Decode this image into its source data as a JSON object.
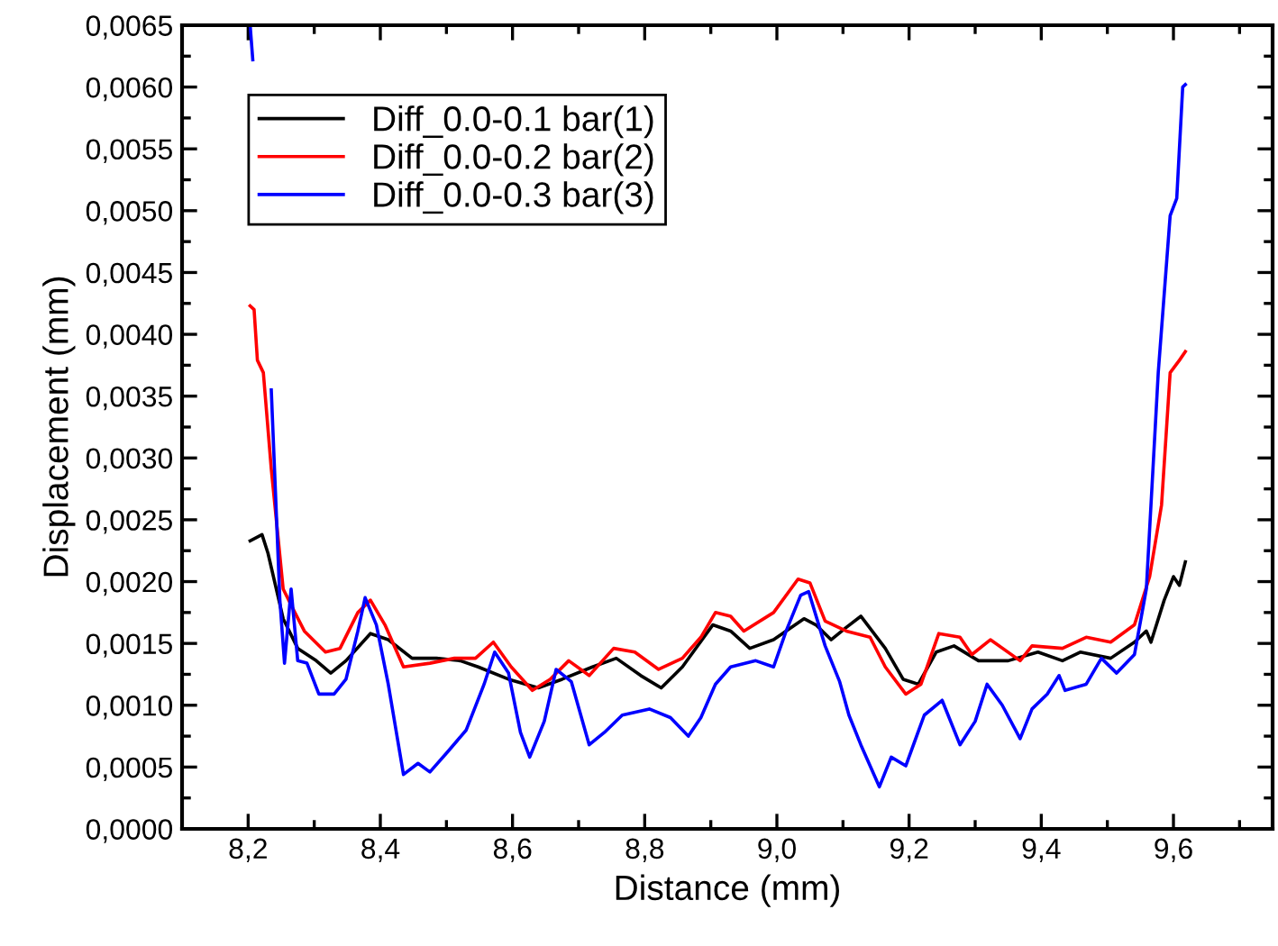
{
  "chart_data": {
    "type": "line",
    "xlabel": "Distance (mm)",
    "ylabel": "Displacement (mm)",
    "xlim": [
      8.1,
      9.75
    ],
    "ylim": [
      0,
      0.0065
    ],
    "xticks": [
      {
        "value": 8.2,
        "label": "8,2"
      },
      {
        "value": 8.4,
        "label": "8,4"
      },
      {
        "value": 8.6,
        "label": "8,6"
      },
      {
        "value": 8.8,
        "label": "8,8"
      },
      {
        "value": 9.0,
        "label": "9,0"
      },
      {
        "value": 9.2,
        "label": "9,2"
      },
      {
        "value": 9.4,
        "label": "9,4"
      },
      {
        "value": 9.6,
        "label": "9,6"
      }
    ],
    "yticks": [
      {
        "value": 0,
        "label": "0,0000"
      },
      {
        "value": 0.0005,
        "label": "0,0005"
      },
      {
        "value": 0.001,
        "label": "0,0010"
      },
      {
        "value": 0.0015,
        "label": "0,0015"
      },
      {
        "value": 0.002,
        "label": "0,0020"
      },
      {
        "value": 0.0025,
        "label": "0,0025"
      },
      {
        "value": 0.003,
        "label": "0,0030"
      },
      {
        "value": 0.0035,
        "label": "0,0035"
      },
      {
        "value": 0.004,
        "label": "0,0040"
      },
      {
        "value": 0.0045,
        "label": "0,0045"
      },
      {
        "value": 0.005,
        "label": "0,0050"
      },
      {
        "value": 0.0055,
        "label": "0,0055"
      },
      {
        "value": 0.006,
        "label": "0,0060"
      },
      {
        "value": 0.0065,
        "label": "0,0065"
      }
    ],
    "legend": "top left",
    "grid": false,
    "marker": "none",
    "line_style": "solid",
    "series": [
      {
        "name": "Diff_0.0-0.1 bar(1)",
        "color": "#000000",
        "x": [
          8.203,
          8.221,
          8.23,
          8.253,
          8.275,
          8.303,
          8.325,
          8.348,
          8.385,
          8.412,
          8.448,
          8.485,
          8.521,
          8.548,
          8.594,
          8.639,
          8.675,
          8.721,
          8.757,
          8.794,
          8.825,
          8.857,
          8.903,
          8.93,
          8.959,
          8.995,
          9.041,
          9.059,
          9.082,
          9.105,
          9.127,
          9.164,
          9.191,
          9.214,
          9.241,
          9.268,
          9.305,
          9.35,
          9.395,
          9.432,
          9.459,
          9.505,
          9.541,
          9.559,
          9.566,
          9.586,
          9.6,
          9.609,
          9.618
        ],
        "values": [
          0.00233,
          0.00238,
          0.00223,
          0.0017,
          0.00146,
          0.00136,
          0.00126,
          0.00136,
          0.00158,
          0.00153,
          0.00138,
          0.00138,
          0.00136,
          0.00131,
          0.00121,
          0.00114,
          0.00121,
          0.00131,
          0.00138,
          0.00124,
          0.00114,
          0.00131,
          0.00165,
          0.0016,
          0.00146,
          0.00153,
          0.0017,
          0.00165,
          0.00153,
          0.00163,
          0.00172,
          0.00146,
          0.00121,
          0.00117,
          0.00143,
          0.00148,
          0.00136,
          0.00136,
          0.00143,
          0.00136,
          0.00143,
          0.00138,
          0.00151,
          0.0016,
          0.00151,
          0.00185,
          0.00204,
          0.00197,
          0.00216
        ]
      },
      {
        "name": "Diff_0.0-0.2 bar(2)",
        "color": "#ff0000",
        "x": [
          8.203,
          8.209,
          8.214,
          8.223,
          8.235,
          8.253,
          8.266,
          8.285,
          8.317,
          8.339,
          8.366,
          8.385,
          8.407,
          8.435,
          8.475,
          8.512,
          8.544,
          8.571,
          8.598,
          8.63,
          8.657,
          8.685,
          8.716,
          8.753,
          8.785,
          8.821,
          8.857,
          8.885,
          8.907,
          8.93,
          8.95,
          8.995,
          9.032,
          9.05,
          9.073,
          9.105,
          9.141,
          9.164,
          9.195,
          9.218,
          9.245,
          9.277,
          9.295,
          9.323,
          9.368,
          9.386,
          9.432,
          9.468,
          9.505,
          9.541,
          9.564,
          9.582,
          9.595,
          9.609,
          9.618
        ],
        "values": [
          0.00423,
          0.0042,
          0.00379,
          0.00369,
          0.00291,
          0.00194,
          0.0018,
          0.0016,
          0.00143,
          0.00146,
          0.00175,
          0.00185,
          0.00165,
          0.00131,
          0.00134,
          0.00138,
          0.00138,
          0.00151,
          0.00131,
          0.00112,
          0.00121,
          0.00136,
          0.00124,
          0.00146,
          0.00143,
          0.00129,
          0.00138,
          0.00155,
          0.00175,
          0.00172,
          0.0016,
          0.00175,
          0.00202,
          0.00199,
          0.00168,
          0.0016,
          0.00155,
          0.00131,
          0.00109,
          0.00117,
          0.00158,
          0.00155,
          0.00141,
          0.00153,
          0.00136,
          0.00148,
          0.00146,
          0.00155,
          0.00151,
          0.00165,
          0.00204,
          0.00262,
          0.00369,
          0.00379,
          0.00386
        ]
      },
      {
        "name": "Diff_0.0-0.3 bar(3)",
        "color": "#0000ff",
        "x": [
          8.203,
          8.207,
          8.221,
          8.235,
          8.248,
          8.255,
          8.265,
          8.275,
          8.289,
          8.307,
          8.33,
          8.348,
          8.366,
          8.377,
          8.394,
          8.412,
          8.435,
          8.457,
          8.475,
          8.503,
          8.53,
          8.557,
          8.573,
          8.594,
          8.612,
          8.626,
          8.648,
          8.666,
          8.689,
          8.716,
          8.739,
          8.766,
          8.807,
          8.839,
          8.866,
          8.885,
          8.907,
          8.93,
          8.968,
          8.995,
          9.014,
          9.036,
          9.048,
          9.073,
          9.095,
          9.109,
          9.127,
          9.155,
          9.173,
          9.195,
          9.223,
          9.25,
          9.277,
          9.3,
          9.318,
          9.341,
          9.368,
          9.386,
          9.409,
          9.427,
          9.436,
          9.468,
          9.491,
          9.514,
          9.541,
          9.559,
          9.577,
          9.595,
          9.605,
          9.614,
          9.618
        ],
        "values": [
          0.0065,
          0.00622,
          null,
          0.00355,
          0.00185,
          0.00134,
          0.00194,
          0.00136,
          0.00134,
          0.00109,
          0.00109,
          0.00121,
          0.0016,
          0.00187,
          0.00165,
          0.00117,
          0.00044,
          0.00053,
          0.00046,
          0.00063,
          0.0008,
          0.00117,
          0.00143,
          0.00126,
          0.00078,
          0.00058,
          0.00087,
          0.00129,
          0.00119,
          0.00068,
          0.00078,
          0.00092,
          0.00097,
          0.0009,
          0.00075,
          0.0009,
          0.00117,
          0.00131,
          0.00136,
          0.00131,
          0.0016,
          0.00189,
          0.00192,
          0.00148,
          0.00119,
          0.00092,
          0.00068,
          0.00034,
          0.00058,
          0.00051,
          0.00092,
          0.00104,
          0.00068,
          0.00087,
          0.00117,
          0.001,
          0.00073,
          0.00097,
          0.00109,
          0.00124,
          0.00112,
          0.00117,
          0.00138,
          0.00126,
          0.00141,
          0.00194,
          0.00369,
          0.00496,
          0.0051,
          0.006,
          0.00602
        ]
      }
    ]
  }
}
